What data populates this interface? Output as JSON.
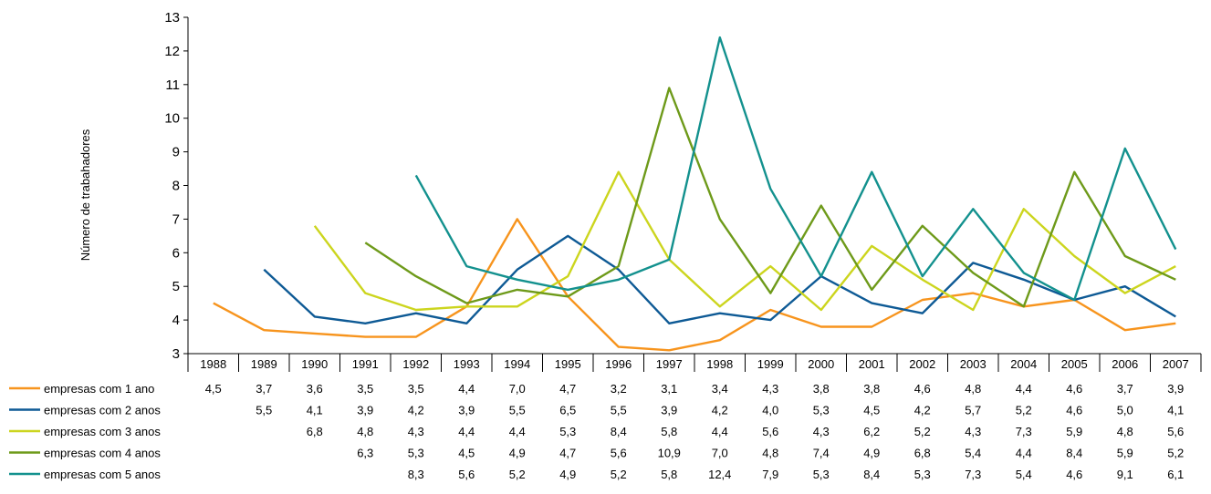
{
  "chart_data": {
    "type": "line",
    "title": "",
    "ylabel": "Número de trabahadores",
    "xlabel": "",
    "ylim": [
      3,
      13
    ],
    "yticks": [
      3,
      4,
      5,
      6,
      7,
      8,
      9,
      10,
      11,
      12,
      13
    ],
    "categories": [
      "1988",
      "1989",
      "1990",
      "1991",
      "1992",
      "1993",
      "1994",
      "1995",
      "1996",
      "1997",
      "1998",
      "1999",
      "2000",
      "2001",
      "2002",
      "2003",
      "2004",
      "2005",
      "2006",
      "2007"
    ],
    "grid": false,
    "legend": "data-table-below",
    "series": [
      {
        "name": "empresas com 1 ano",
        "color": "#F7941D",
        "values": [
          4.5,
          3.7,
          3.6,
          3.5,
          3.5,
          4.4,
          7.0,
          4.7,
          3.2,
          3.1,
          3.4,
          4.3,
          3.8,
          3.8,
          4.6,
          4.8,
          4.4,
          4.6,
          3.7,
          3.9
        ],
        "labels": [
          "4,5",
          "3,7",
          "3,6",
          "3,5",
          "3,5",
          "4,4",
          "7,0",
          "4,7",
          "3,2",
          "3,1",
          "3,4",
          "4,3",
          "3,8",
          "3,8",
          "4,6",
          "4,8",
          "4,4",
          "4,6",
          "3,7",
          "3,9"
        ]
      },
      {
        "name": "empresas com 2 anos",
        "color": "#0E5A95",
        "values": [
          null,
          5.5,
          4.1,
          3.9,
          4.2,
          3.9,
          5.5,
          6.5,
          5.5,
          3.9,
          4.2,
          4.0,
          5.3,
          4.5,
          4.2,
          5.7,
          5.2,
          4.6,
          5.0,
          4.1
        ],
        "labels": [
          "",
          "5,5",
          "4,1",
          "3,9",
          "4,2",
          "3,9",
          "5,5",
          "6,5",
          "5,5",
          "3,9",
          "4,2",
          "4,0",
          "5,3",
          "4,5",
          "4,2",
          "5,7",
          "5,2",
          "4,6",
          "5,0",
          "4,1"
        ]
      },
      {
        "name": "empresas com 3 anos",
        "color": "#CCD51E",
        "values": [
          null,
          null,
          6.8,
          4.8,
          4.3,
          4.4,
          4.4,
          5.3,
          8.4,
          5.8,
          4.4,
          5.6,
          4.3,
          6.2,
          5.2,
          4.3,
          7.3,
          5.9,
          4.8,
          5.6
        ],
        "labels": [
          "",
          "",
          "6,8",
          "4,8",
          "4,3",
          "4,4",
          "4,4",
          "5,3",
          "8,4",
          "5,8",
          "4,4",
          "5,6",
          "4,3",
          "6,2",
          "5,2",
          "4,3",
          "7,3",
          "5,9",
          "4,8",
          "5,6"
        ]
      },
      {
        "name": "empresas com 4 anos",
        "color": "#6E9A1A",
        "values": [
          null,
          null,
          null,
          6.3,
          5.3,
          4.5,
          4.9,
          4.7,
          5.6,
          10.9,
          7.0,
          4.8,
          7.4,
          4.9,
          6.8,
          5.4,
          4.4,
          8.4,
          5.9,
          5.2
        ],
        "labels": [
          "",
          "",
          "",
          "6,3",
          "5,3",
          "4,5",
          "4,9",
          "4,7",
          "5,6",
          "10,9",
          "7,0",
          "4,8",
          "7,4",
          "4,9",
          "6,8",
          "5,4",
          "4,4",
          "8,4",
          "5,9",
          "5,2"
        ]
      },
      {
        "name": "empresas com 5 anos",
        "color": "#13918E",
        "values": [
          null,
          null,
          null,
          null,
          8.3,
          5.6,
          5.2,
          4.9,
          5.2,
          5.8,
          12.4,
          7.9,
          5.3,
          8.4,
          5.3,
          7.3,
          5.4,
          4.6,
          9.1,
          6.1
        ],
        "labels": [
          "",
          "",
          "",
          "",
          "8,3",
          "5,6",
          "5,2",
          "4,9",
          "5,2",
          "5,8",
          "12,4",
          "7,9",
          "5,3",
          "8,4",
          "5,3",
          "7,3",
          "5,4",
          "4,6",
          "9,1",
          "6,1"
        ]
      }
    ]
  }
}
